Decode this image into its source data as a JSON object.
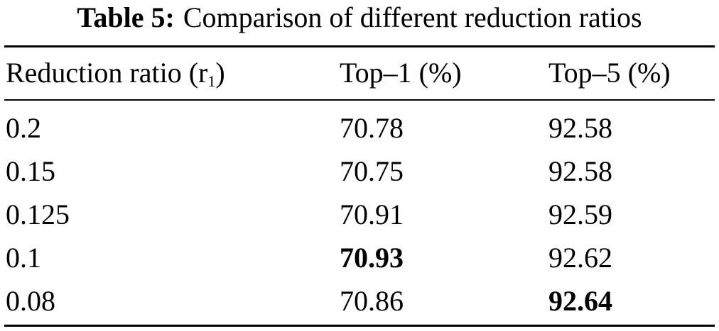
{
  "caption": {
    "label": "Table 5:",
    "text": "Comparison of different reduction ratios"
  },
  "table": {
    "header": [
      {
        "text": "Reduction ratio (r",
        "subscript": "1",
        "suffix": ")"
      },
      {
        "text": "Top–1 (%)"
      },
      {
        "text": "Top–5 (%)"
      }
    ],
    "rows": [
      [
        {
          "text": "0.2"
        },
        {
          "text": "70.78"
        },
        {
          "text": "92.58"
        }
      ],
      [
        {
          "text": "0.15"
        },
        {
          "text": "70.75"
        },
        {
          "text": "92.58"
        }
      ],
      [
        {
          "text": "0.125"
        },
        {
          "text": "70.91"
        },
        {
          "text": "92.59"
        }
      ],
      [
        {
          "text": "0.1"
        },
        {
          "text": "70.93",
          "bold": true
        },
        {
          "text": "92.62"
        }
      ],
      [
        {
          "text": "0.08"
        },
        {
          "text": "70.86"
        },
        {
          "text": "92.64",
          "bold": true
        }
      ]
    ]
  }
}
